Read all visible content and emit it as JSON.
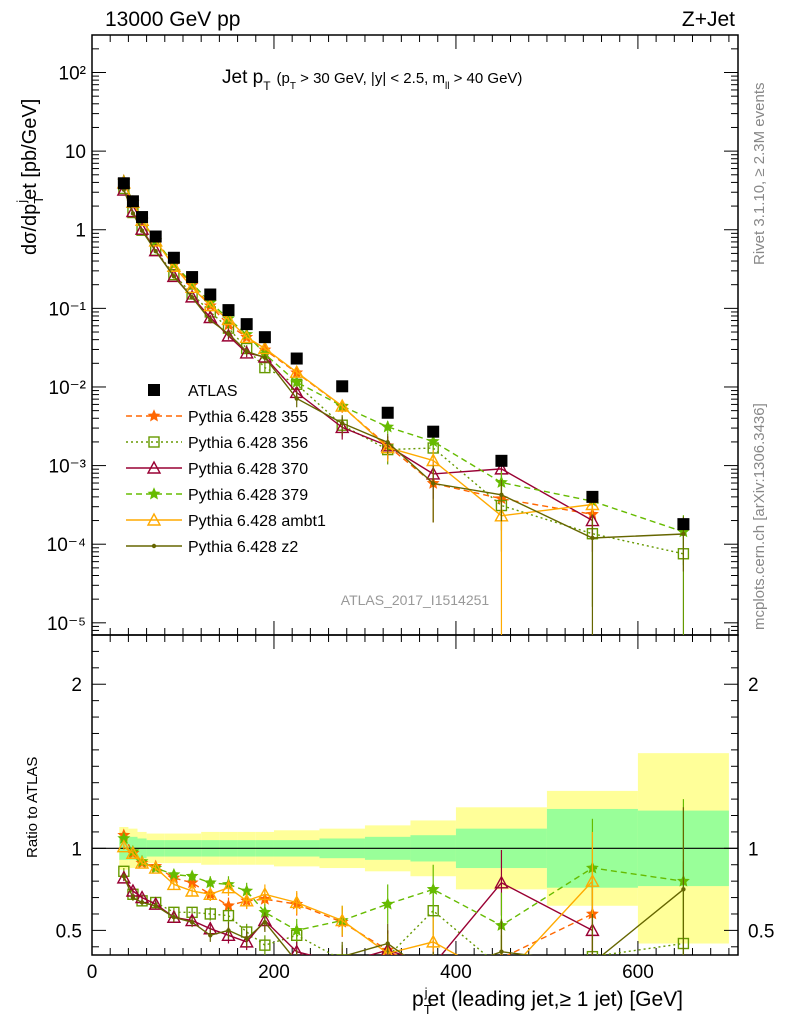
{
  "header": {
    "left": "13000 GeV pp",
    "right": "Z+Jet"
  },
  "side_texts": {
    "rivet": "Rivet 3.1.10, ≥ 2.3M events",
    "mcplots": "mcplots.cern.ch [arXiv:1306.3436]"
  },
  "plot_title": {
    "main": "Jet p",
    "main_sub": "T",
    "cuts": "(p",
    "cuts_sub": "T",
    "cuts_rest": " > 30 GeV, |y| < 2.5, m",
    "cuts_sub2": "ll",
    "cuts_end": " > 40 GeV)"
  },
  "analysis_id": "ATLAS_2017_I1514251",
  "ylabel_main": "dσ/dp",
  "ylabel_main_sub": "T",
  "ylabel_main_sup": "j",
  "ylabel_main_end": "et [pb/GeV]",
  "ylabel_ratio": "Ratio to ATLAS",
  "xlabel": {
    "p": "p",
    "sub": "T",
    "sup": "j",
    "rest": "et (leading jet,≥ 1 jet) [GeV]"
  },
  "chart_data": {
    "type": "scatter",
    "x_scale": "linear",
    "xlim": [
      0,
      710
    ],
    "main_yscale": "log",
    "main_ylim": [
      7e-06,
      300
    ],
    "ratio_ylim": [
      0.35,
      2.3
    ],
    "x_ticks": [
      0,
      200,
      400,
      600
    ],
    "main_y_ticks": [
      {
        "value": 1e-05,
        "label": "10⁻⁵"
      },
      {
        "value": 0.0001,
        "label": "10⁻⁴"
      },
      {
        "value": 0.001,
        "label": "10⁻³"
      },
      {
        "value": 0.01,
        "label": "10⁻²"
      },
      {
        "value": 0.1,
        "label": "10⁻¹"
      },
      {
        "value": 1,
        "label": "1"
      },
      {
        "value": 10,
        "label": "10"
      },
      {
        "value": 100,
        "label": "10²"
      }
    ],
    "ratio_y_ticks": [
      {
        "value": 0.5,
        "label": "0.5"
      },
      {
        "value": 1,
        "label": "1"
      },
      {
        "value": 2,
        "label": "2"
      }
    ],
    "bin_edges": [
      30,
      40,
      50,
      60,
      80,
      100,
      120,
      140,
      160,
      180,
      200,
      250,
      300,
      350,
      400,
      500,
      600,
      700
    ],
    "x": [
      35,
      45,
      55,
      70,
      90,
      110,
      130,
      150,
      170,
      190,
      225,
      275,
      325,
      375,
      450,
      550,
      650
    ],
    "band_green": [
      0.07,
      0.07,
      0.06,
      0.05,
      0.05,
      0.05,
      0.05,
      0.05,
      0.05,
      0.05,
      0.05,
      0.06,
      0.07,
      0.08,
      0.12,
      0.24,
      0.23
    ],
    "band_yellow": [
      0.13,
      0.12,
      0.1,
      0.09,
      0.09,
      0.09,
      0.1,
      0.1,
      0.1,
      0.1,
      0.11,
      0.12,
      0.14,
      0.17,
      0.25,
      0.35,
      0.58
    ],
    "data": {
      "name": "ATLAS",
      "color": "#000000",
      "values": [
        3.9,
        2.3,
        1.45,
        0.82,
        0.44,
        0.25,
        0.15,
        0.095,
        0.063,
        0.043,
        0.023,
        0.0102,
        0.0047,
        0.0027,
        0.00115,
        0.0004,
        0.00018
      ]
    },
    "series": [
      {
        "name": "Pythia 6.428 355",
        "color": "#ff6600",
        "marker": "star",
        "line": "dashed",
        "ratio": [
          1.08,
          0.97,
          0.91,
          0.89,
          0.82,
          0.79,
          0.72,
          0.65,
          0.68,
          0.69,
          0.66,
          0.55,
          0.38,
          0.22,
          0.33,
          0.6,
          null
        ],
        "ratio_err": [
          0.02,
          0.02,
          0.02,
          0.02,
          0.03,
          0.03,
          0.04,
          0.05,
          0.05,
          0.06,
          0.07,
          0.09,
          0.12,
          0.15,
          0.2,
          0.3,
          null
        ]
      },
      {
        "name": "Pythia 6.428 356",
        "color": "#669900",
        "marker": "open-square",
        "line": "dotted",
        "ratio": [
          0.86,
          0.72,
          0.68,
          0.67,
          0.61,
          0.61,
          0.6,
          0.59,
          0.49,
          0.41,
          0.47,
          0.32,
          0.34,
          0.62,
          0.27,
          0.34,
          0.42
        ],
        "ratio_err": [
          0.02,
          0.02,
          0.02,
          0.02,
          0.03,
          0.03,
          0.04,
          0.05,
          0.05,
          0.06,
          0.07,
          0.09,
          0.12,
          0.15,
          0.2,
          0.3,
          0.5
        ]
      },
      {
        "name": "Pythia 6.428 370",
        "color": "#990033",
        "marker": "open-triangle",
        "line": "solid",
        "ratio": [
          0.82,
          0.74,
          0.7,
          0.66,
          0.58,
          0.56,
          0.51,
          0.47,
          0.43,
          0.56,
          0.37,
          0.3,
          0.38,
          0.29,
          0.79,
          0.5,
          null
        ],
        "ratio_err": [
          0.02,
          0.02,
          0.02,
          0.02,
          0.03,
          0.03,
          0.04,
          0.05,
          0.05,
          0.06,
          0.07,
          0.09,
          0.12,
          0.15,
          0.2,
          0.3,
          null
        ]
      },
      {
        "name": "Pythia 6.428 379",
        "color": "#66bb00",
        "marker": "star",
        "line": "dashed",
        "ratio": [
          1.06,
          0.98,
          0.92,
          0.88,
          0.84,
          0.83,
          0.79,
          0.78,
          0.74,
          0.61,
          0.5,
          0.56,
          0.66,
          0.75,
          0.53,
          0.88,
          0.8
        ],
        "ratio_err": [
          0.02,
          0.02,
          0.02,
          0.02,
          0.03,
          0.03,
          0.04,
          0.05,
          0.05,
          0.06,
          0.07,
          0.09,
          0.12,
          0.15,
          0.2,
          0.3,
          0.5
        ]
      },
      {
        "name": "Pythia 6.428 ambt1",
        "color": "#ffaa00",
        "marker": "open-triangle",
        "line": "solid",
        "ratio": [
          1.01,
          0.97,
          0.91,
          0.88,
          0.78,
          0.74,
          0.72,
          0.76,
          0.68,
          0.72,
          0.67,
          0.56,
          0.36,
          0.43,
          0.2,
          0.8,
          null
        ],
        "ratio_err": [
          0.02,
          0.02,
          0.02,
          0.02,
          0.03,
          0.03,
          0.04,
          0.05,
          0.05,
          0.06,
          0.07,
          0.09,
          0.12,
          0.15,
          0.2,
          0.3,
          null
        ]
      },
      {
        "name": "Pythia 6.428 z2",
        "color": "#666600",
        "marker": "dot",
        "line": "solid",
        "ratio": [
          0.83,
          0.7,
          0.67,
          0.65,
          0.58,
          0.55,
          0.47,
          0.5,
          0.45,
          0.55,
          0.31,
          0.34,
          0.42,
          0.22,
          0.37,
          0.3,
          0.75
        ],
        "ratio_err": [
          0.02,
          0.02,
          0.02,
          0.02,
          0.03,
          0.03,
          0.04,
          0.05,
          0.05,
          0.06,
          0.07,
          0.09,
          0.12,
          0.15,
          0.2,
          0.3,
          0.5
        ]
      }
    ]
  }
}
